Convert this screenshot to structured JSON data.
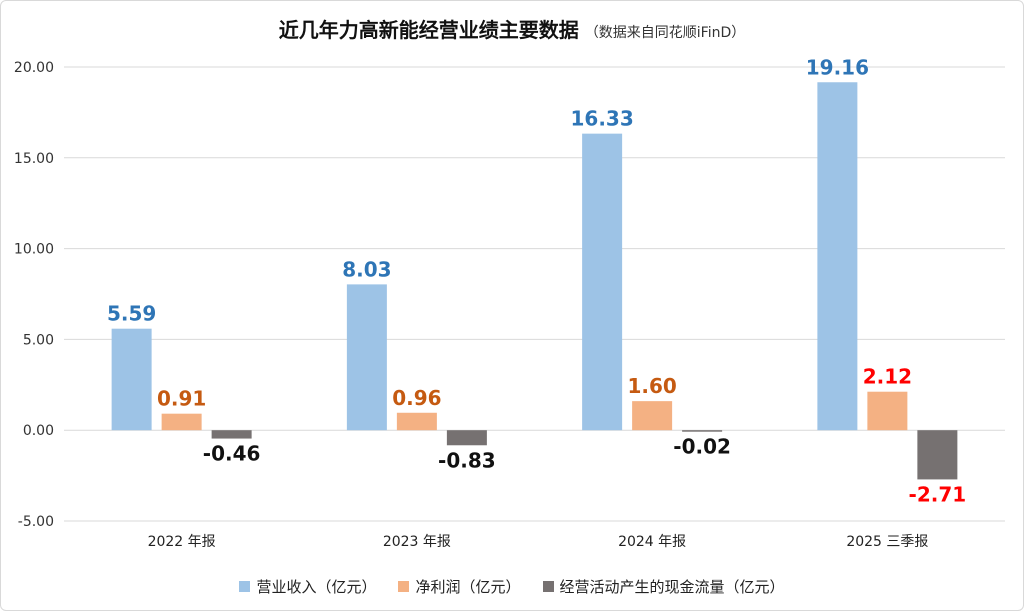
{
  "chart_data": {
    "type": "bar",
    "title": "近几年力高新能经营业绩主要数据",
    "subtitle": "（数据来自同花顺iFinD）",
    "categories": [
      "2022 年报",
      "2023 年报",
      "2024 年报",
      "2025 三季报"
    ],
    "series": [
      {
        "name": "营业收入（亿元）",
        "values": [
          5.59,
          8.03,
          16.33,
          19.16
        ],
        "color": "#9dc3e6",
        "label_colors": [
          "#2e75b6",
          "#2e75b6",
          "#2e75b6",
          "#2e75b6"
        ]
      },
      {
        "name": "净利润（亿元）",
        "values": [
          0.91,
          0.96,
          1.6,
          2.12
        ],
        "color": "#f4b183",
        "label_colors": [
          "#c55a11",
          "#c55a11",
          "#c55a11",
          "#ff0000"
        ]
      },
      {
        "name": "经营活动产生的现金流量（亿元）",
        "values": [
          -0.46,
          -0.83,
          -0.02,
          -2.71
        ],
        "color": "#767171",
        "label_colors": [
          "#111111",
          "#111111",
          "#111111",
          "#ff0000"
        ]
      }
    ],
    "value_labels": [
      [
        "5.59",
        "8.03",
        "16.33",
        "19.16"
      ],
      [
        "0.91",
        "0.96",
        "1.60",
        "2.12"
      ],
      [
        "-0.46",
        "-0.83",
        "-0.02",
        "-2.71"
      ]
    ],
    "yticks": [
      "20.00",
      "15.00",
      "10.00",
      "5.00",
      "0.00",
      "-5.00"
    ],
    "ytick_values": [
      20,
      15,
      10,
      5,
      0,
      -5
    ],
    "ylim": [
      -5,
      20
    ],
    "grid": true,
    "legend_position": "bottom"
  }
}
